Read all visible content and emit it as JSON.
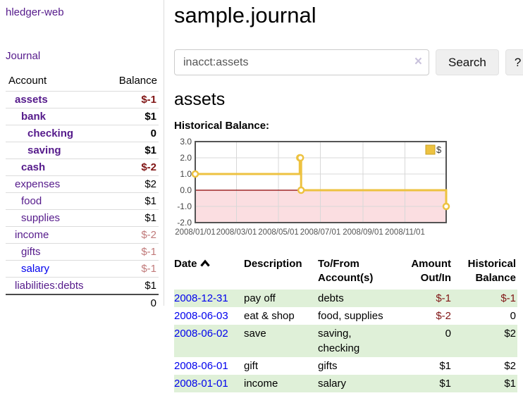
{
  "sidebar": {
    "app_title": "hledger-web",
    "journal_link": "Journal",
    "table": {
      "account_header": "Account",
      "balance_header": "Balance",
      "rows": [
        {
          "name": "assets",
          "depth": 1,
          "bold": true,
          "link": "purple",
          "balance": "$-1",
          "balance_class": "neg"
        },
        {
          "name": "bank",
          "depth": 2,
          "bold": true,
          "link": "purple",
          "balance": "$1",
          "balance_class": ""
        },
        {
          "name": "checking",
          "depth": 3,
          "bold": true,
          "link": "purple",
          "balance": "0",
          "balance_class": ""
        },
        {
          "name": "saving",
          "depth": 3,
          "bold": true,
          "link": "purple",
          "balance": "$1",
          "balance_class": ""
        },
        {
          "name": "cash",
          "depth": 2,
          "bold": true,
          "link": "purple",
          "balance": "$-2",
          "balance_class": "neg"
        },
        {
          "name": "expenses",
          "depth": 1,
          "bold": false,
          "link": "purple",
          "balance": "$2",
          "balance_class": ""
        },
        {
          "name": "food",
          "depth": 2,
          "bold": false,
          "link": "purple",
          "balance": "$1",
          "balance_class": ""
        },
        {
          "name": "supplies",
          "depth": 2,
          "bold": false,
          "link": "purple",
          "balance": "$1",
          "balance_class": ""
        },
        {
          "name": "income",
          "depth": 1,
          "bold": false,
          "link": "purple",
          "balance": "$-2",
          "balance_class": "muted"
        },
        {
          "name": "gifts",
          "depth": 2,
          "bold": false,
          "link": "purple",
          "balance": "$-1",
          "balance_class": "muted"
        },
        {
          "name": "salary",
          "depth": 2,
          "bold": false,
          "link": "blue",
          "balance": "$-1",
          "balance_class": "muted"
        },
        {
          "name": "liabilities:debts",
          "depth": 1,
          "bold": false,
          "link": "purple",
          "balance": "$1",
          "balance_class": ""
        }
      ],
      "total": "0"
    }
  },
  "main": {
    "title": "sample.journal",
    "search": {
      "value": "inacct:assets",
      "clear_label": "×",
      "button_label": "Search",
      "help_label": "?"
    },
    "account_heading": "assets",
    "chart_label": "Historical Balance:"
  },
  "chart_data": {
    "type": "line",
    "title": "Historical Balance",
    "step": true,
    "series": [
      {
        "name": "$",
        "color": "#edc240",
        "points": [
          [
            "2008-01-01",
            1
          ],
          [
            "2008-06-01",
            2
          ],
          [
            "2008-06-02",
            2
          ],
          [
            "2008-06-03",
            0
          ],
          [
            "2008-12-31",
            -1
          ]
        ]
      }
    ],
    "ylim": [
      -2,
      3
    ],
    "yticks": [
      3.0,
      2.0,
      1.0,
      0.0,
      -1.0,
      -2.0
    ],
    "xticks": [
      "2008/01/01",
      "2008/03/01",
      "2008/05/01",
      "2008/07/01",
      "2008/09/01",
      "2008/11/01"
    ],
    "x_range": [
      "2008-01-01",
      "2008-12-31"
    ],
    "grid": true,
    "legend_position": "top-right",
    "zero_line_color": "#8b0000",
    "negative_region_color": "#fbdee1",
    "border_color": "#545454",
    "gridline_color": "#d8d8d8"
  },
  "register": {
    "headers": [
      "Date",
      "Description",
      "To/From Account(s)",
      "Amount Out/In",
      "Historical Balance"
    ],
    "rows": [
      {
        "date": "2008-12-31",
        "description": "pay off",
        "accounts": "debts",
        "amount": "$-1",
        "amount_negative": true,
        "balance": "$-1",
        "balance_negative": true,
        "shaded": true
      },
      {
        "date": "2008-06-03",
        "description": "eat & shop",
        "accounts": "food, supplies",
        "amount": "$-2",
        "amount_negative": true,
        "balance": "0",
        "balance_negative": false,
        "shaded": false
      },
      {
        "date": "2008-06-02",
        "description": "save",
        "accounts": "saving, checking",
        "amount": "0",
        "amount_negative": false,
        "balance": "$2",
        "balance_negative": false,
        "shaded": true
      },
      {
        "date": "2008-06-01",
        "description": "gift",
        "accounts": "gifts",
        "amount": "$1",
        "amount_negative": false,
        "balance": "$2",
        "balance_negative": false,
        "shaded": false
      },
      {
        "date": "2008-01-01",
        "description": "income",
        "accounts": "salary",
        "amount": "$1",
        "amount_negative": false,
        "balance": "$1",
        "balance_negative": false,
        "shaded": true
      }
    ]
  },
  "colors": {
    "visited_link": "#551a8b",
    "unvisited_link": "#0000ee",
    "negative_amount": "#801515",
    "muted_negative_amount": "#c17a7a",
    "shaded_row": "#dff0d8",
    "series_yellow": "#edc240"
  }
}
